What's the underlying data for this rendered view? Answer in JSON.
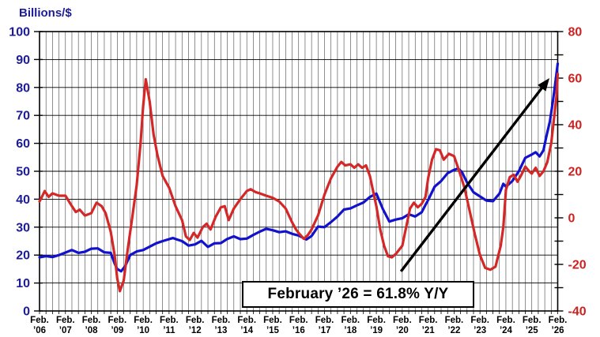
{
  "chart_data": {
    "type": "line",
    "title": "",
    "left_axis": {
      "label": "Billions/$",
      "min": 0,
      "max": 100,
      "tick_step": 10,
      "label_step": 10,
      "color": "#1c1c99",
      "tick_labels": [
        "0",
        "10",
        "20",
        "30",
        "40",
        "50",
        "60",
        "70",
        "80",
        "90",
        "100"
      ]
    },
    "right_axis": {
      "label": "",
      "min": -40,
      "max": 80,
      "tick_step": 10,
      "label_step": 20,
      "color": "#cc2222",
      "tick_labels": [
        "-40",
        "-20",
        "0",
        "20",
        "40",
        "60",
        "80"
      ]
    },
    "x_axis": {
      "month_label": "Feb.",
      "x_ticks": [
        {
          "top": "Feb.",
          "bottom": "’06"
        },
        {
          "top": "Feb.",
          "bottom": "’07"
        },
        {
          "top": "Feb.",
          "bottom": "’08"
        },
        {
          "top": "Feb.",
          "bottom": "’09"
        },
        {
          "top": "Feb.",
          "bottom": "’10"
        },
        {
          "top": "Feb.",
          "bottom": "’11"
        },
        {
          "top": "Feb.",
          "bottom": "’12"
        },
        {
          "top": "Feb.",
          "bottom": "’13"
        },
        {
          "top": "Feb.",
          "bottom": "’14"
        },
        {
          "top": "Feb.",
          "bottom": "’15"
        },
        {
          "top": "Feb.",
          "bottom": "’16"
        },
        {
          "top": "Feb.",
          "bottom": "’17"
        },
        {
          "top": "Feb.",
          "bottom": "’18"
        },
        {
          "top": "Feb.",
          "bottom": "’19"
        },
        {
          "top": "Feb.",
          "bottom": "’20"
        },
        {
          "top": "Feb.",
          "bottom": "’21"
        },
        {
          "top": "Feb.",
          "bottom": "’22"
        },
        {
          "top": "Feb.",
          "bottom": "’23"
        },
        {
          "top": "Feb.",
          "bottom": "’24"
        },
        {
          "top": "Feb.",
          "bottom": "’25"
        },
        {
          "top": "Feb.",
          "bottom": "’26"
        }
      ],
      "start_year": 2006,
      "end_year": 2026,
      "gridlines_per_year": 4
    },
    "grid": {
      "vertical_color": "#454545",
      "horizontal_color": "#000000",
      "border_color": "#000000"
    },
    "series": [
      {
        "name": "level-billions",
        "axis": "left",
        "color": "#1212cc",
        "points": [
          [
            2006.0,
            19.2
          ],
          [
            2006.25,
            19.6
          ],
          [
            2006.5,
            19.3
          ],
          [
            2006.75,
            20.0
          ],
          [
            2007.0,
            20.9
          ],
          [
            2007.25,
            21.8
          ],
          [
            2007.5,
            20.8
          ],
          [
            2007.75,
            21.2
          ],
          [
            2008.0,
            22.3
          ],
          [
            2008.25,
            22.4
          ],
          [
            2008.5,
            21.0
          ],
          [
            2008.75,
            20.8
          ],
          [
            2008.9,
            17.0
          ],
          [
            2009.0,
            15.0
          ],
          [
            2009.15,
            14.2
          ],
          [
            2009.3,
            16.0
          ],
          [
            2009.5,
            20.0
          ],
          [
            2009.75,
            21.3
          ],
          [
            2010.0,
            21.8
          ],
          [
            2010.25,
            23.0
          ],
          [
            2010.5,
            24.2
          ],
          [
            2010.75,
            25.0
          ],
          [
            2011.0,
            25.7
          ],
          [
            2011.15,
            26.1
          ],
          [
            2011.3,
            25.6
          ],
          [
            2011.5,
            25.0
          ],
          [
            2011.75,
            23.4
          ],
          [
            2012.0,
            23.8
          ],
          [
            2012.25,
            25.1
          ],
          [
            2012.5,
            22.9
          ],
          [
            2012.75,
            24.2
          ],
          [
            2013.0,
            24.3
          ],
          [
            2013.25,
            25.8
          ],
          [
            2013.5,
            26.7
          ],
          [
            2013.75,
            25.7
          ],
          [
            2014.0,
            25.9
          ],
          [
            2014.25,
            27.2
          ],
          [
            2014.5,
            28.4
          ],
          [
            2014.75,
            29.4
          ],
          [
            2015.0,
            28.9
          ],
          [
            2015.25,
            28.2
          ],
          [
            2015.5,
            28.5
          ],
          [
            2015.75,
            27.6
          ],
          [
            2016.0,
            27.0
          ],
          [
            2016.3,
            25.6
          ],
          [
            2016.5,
            26.8
          ],
          [
            2016.75,
            30.2
          ],
          [
            2017.0,
            30.0
          ],
          [
            2017.25,
            31.8
          ],
          [
            2017.5,
            33.8
          ],
          [
            2017.75,
            36.3
          ],
          [
            2018.0,
            36.7
          ],
          [
            2018.25,
            37.8
          ],
          [
            2018.5,
            38.8
          ],
          [
            2018.75,
            40.8
          ],
          [
            2019.0,
            42.0
          ],
          [
            2019.25,
            36.5
          ],
          [
            2019.5,
            32.0
          ],
          [
            2019.75,
            32.7
          ],
          [
            2020.0,
            33.2
          ],
          [
            2020.25,
            34.6
          ],
          [
            2020.5,
            33.8
          ],
          [
            2020.75,
            35.3
          ],
          [
            2020.9,
            38.0
          ],
          [
            2021.0,
            39.7
          ],
          [
            2021.25,
            44.5
          ],
          [
            2021.5,
            46.5
          ],
          [
            2021.75,
            49.3
          ],
          [
            2022.0,
            50.5
          ],
          [
            2022.15,
            51.0
          ],
          [
            2022.3,
            49.8
          ],
          [
            2022.5,
            46.0
          ],
          [
            2022.75,
            42.5
          ],
          [
            2023.0,
            41.0
          ],
          [
            2023.25,
            39.5
          ],
          [
            2023.5,
            39.3
          ],
          [
            2023.75,
            42.0
          ],
          [
            2023.9,
            45.5
          ],
          [
            2024.0,
            44.5
          ],
          [
            2024.25,
            46.5
          ],
          [
            2024.5,
            50.0
          ],
          [
            2024.75,
            54.8
          ],
          [
            2025.0,
            56.0
          ],
          [
            2025.15,
            56.8
          ],
          [
            2025.3,
            55.3
          ],
          [
            2025.45,
            57.5
          ],
          [
            2025.55,
            62.0
          ],
          [
            2025.7,
            68.0
          ],
          [
            2025.8,
            74.0
          ],
          [
            2025.9,
            81.0
          ],
          [
            2026.0,
            88.5
          ]
        ]
      },
      {
        "name": "year-over-year-percent",
        "axis": "right",
        "color": "#d42828",
        "points": [
          [
            2006.0,
            7
          ],
          [
            2006.2,
            11.5
          ],
          [
            2006.35,
            9
          ],
          [
            2006.5,
            10.5
          ],
          [
            2006.75,
            9.5
          ],
          [
            2007.0,
            9.5
          ],
          [
            2007.25,
            5
          ],
          [
            2007.4,
            2.5
          ],
          [
            2007.55,
            3.5
          ],
          [
            2007.75,
            1
          ],
          [
            2008.0,
            2
          ],
          [
            2008.2,
            6.5
          ],
          [
            2008.4,
            5
          ],
          [
            2008.55,
            2
          ],
          [
            2008.75,
            -6
          ],
          [
            2008.9,
            -16
          ],
          [
            2009.0,
            -26
          ],
          [
            2009.1,
            -31.5
          ],
          [
            2009.25,
            -27
          ],
          [
            2009.4,
            -14
          ],
          [
            2009.55,
            -2
          ],
          [
            2009.75,
            14
          ],
          [
            2009.9,
            32
          ],
          [
            2010.0,
            48
          ],
          [
            2010.1,
            59.5
          ],
          [
            2010.25,
            50
          ],
          [
            2010.4,
            36
          ],
          [
            2010.55,
            27
          ],
          [
            2010.75,
            18
          ],
          [
            2010.9,
            15
          ],
          [
            2011.0,
            13
          ],
          [
            2011.25,
            5
          ],
          [
            2011.5,
            -1
          ],
          [
            2011.65,
            -8
          ],
          [
            2011.8,
            -9.5
          ],
          [
            2011.95,
            -6.5
          ],
          [
            2012.1,
            -8.5
          ],
          [
            2012.3,
            -4
          ],
          [
            2012.45,
            -2.5
          ],
          [
            2012.6,
            -5
          ],
          [
            2012.8,
            0.5
          ],
          [
            2013.0,
            4.5
          ],
          [
            2013.15,
            5
          ],
          [
            2013.3,
            -1
          ],
          [
            2013.5,
            4
          ],
          [
            2013.75,
            8
          ],
          [
            2014.0,
            11.5
          ],
          [
            2014.15,
            12.3
          ],
          [
            2014.35,
            11
          ],
          [
            2014.5,
            10.5
          ],
          [
            2014.75,
            9.5
          ],
          [
            2015.0,
            8.6
          ],
          [
            2015.25,
            7
          ],
          [
            2015.5,
            4
          ],
          [
            2015.75,
            -2
          ],
          [
            2015.9,
            -5
          ],
          [
            2016.0,
            -6.5
          ],
          [
            2016.2,
            -9
          ],
          [
            2016.35,
            -7.5
          ],
          [
            2016.5,
            -5
          ],
          [
            2016.75,
            1
          ],
          [
            2017.0,
            10
          ],
          [
            2017.25,
            17
          ],
          [
            2017.5,
            22
          ],
          [
            2017.65,
            24
          ],
          [
            2017.8,
            22.5
          ],
          [
            2018.0,
            23
          ],
          [
            2018.15,
            21.5
          ],
          [
            2018.3,
            23
          ],
          [
            2018.45,
            21.5
          ],
          [
            2018.6,
            22.5
          ],
          [
            2018.75,
            18
          ],
          [
            2019.0,
            5
          ],
          [
            2019.15,
            -5
          ],
          [
            2019.3,
            -12
          ],
          [
            2019.45,
            -16.5
          ],
          [
            2019.6,
            -17
          ],
          [
            2019.75,
            -15.5
          ],
          [
            2020.0,
            -12
          ],
          [
            2020.15,
            -4
          ],
          [
            2020.3,
            4
          ],
          [
            2020.45,
            6.5
          ],
          [
            2020.6,
            4.5
          ],
          [
            2020.75,
            6
          ],
          [
            2020.9,
            9
          ],
          [
            2021.0,
            17
          ],
          [
            2021.15,
            25
          ],
          [
            2021.3,
            29.5
          ],
          [
            2021.45,
            29
          ],
          [
            2021.6,
            25
          ],
          [
            2021.8,
            27.5
          ],
          [
            2022.0,
            26.5
          ],
          [
            2022.2,
            20
          ],
          [
            2022.4,
            13
          ],
          [
            2022.6,
            3
          ],
          [
            2022.8,
            -7
          ],
          [
            2023.0,
            -16
          ],
          [
            2023.2,
            -21.5
          ],
          [
            2023.4,
            -22.3
          ],
          [
            2023.6,
            -21
          ],
          [
            2023.8,
            -12
          ],
          [
            2023.9,
            -4
          ],
          [
            2024.0,
            12
          ],
          [
            2024.15,
            17.5
          ],
          [
            2024.3,
            18.5
          ],
          [
            2024.45,
            15.5
          ],
          [
            2024.6,
            18.5
          ],
          [
            2024.75,
            22
          ],
          [
            2024.9,
            20
          ],
          [
            2025.0,
            19
          ],
          [
            2025.15,
            21.5
          ],
          [
            2025.3,
            18
          ],
          [
            2025.45,
            20
          ],
          [
            2025.6,
            24
          ],
          [
            2025.75,
            32
          ],
          [
            2025.85,
            42
          ],
          [
            2025.95,
            52
          ],
          [
            2026.0,
            61.8
          ]
        ]
      }
    ],
    "annotation": {
      "text": "February ’26 = 61.8% Y/Y"
    },
    "arrow": {
      "axis": "right",
      "from": [
        2019.95,
        -23
      ],
      "to": [
        2025.68,
        60
      ],
      "color": "#000000"
    },
    "legend": {
      "visible": false
    }
  }
}
